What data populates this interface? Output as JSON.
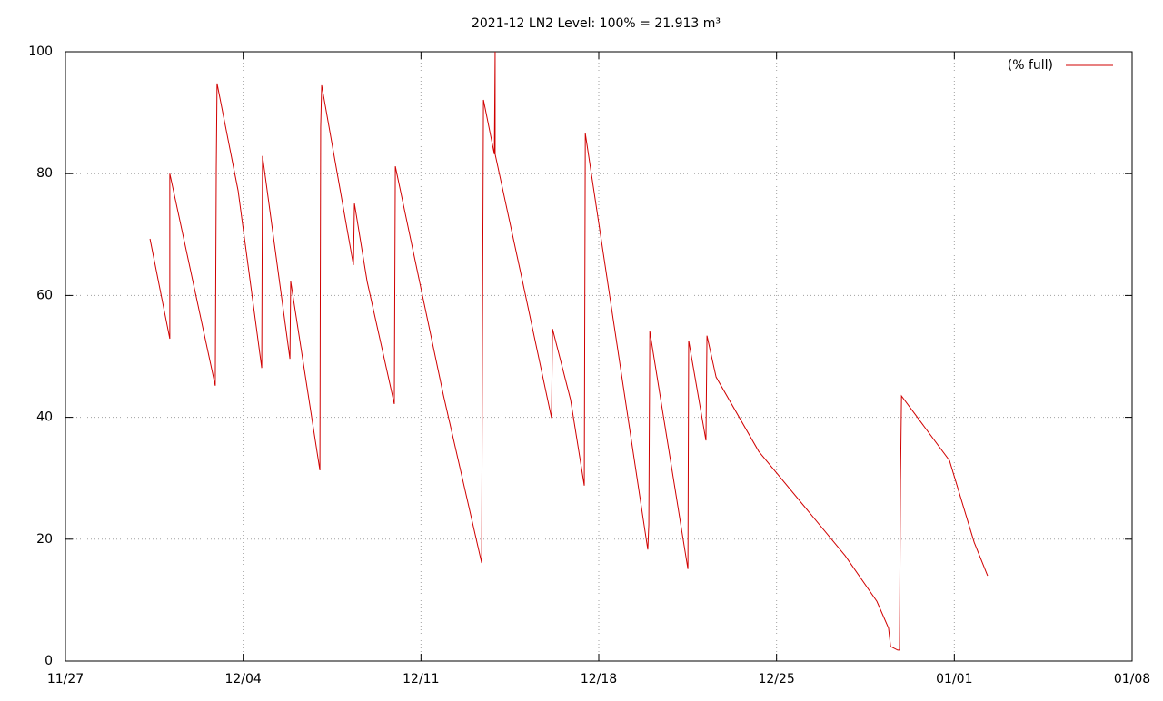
{
  "chart_data": {
    "type": "line",
    "title": "2021-12 LN2 Level: 100% = 21.913 m³",
    "x": [
      3.33,
      4.11,
      4.11,
      5.9,
      5.94,
      5.97,
      6.8,
      7.73,
      7.76,
      8.84,
      8.87,
      10.02,
      10.05,
      10.09,
      11.34,
      11.38,
      11.88,
      12.95,
      12.99,
      14.88,
      16.39,
      16.42,
      16.46,
      16.89,
      16.92,
      16.92,
      18.0,
      19.14,
      19.18,
      19.89,
      20.43,
      20.47,
      22.93,
      22.97,
      23.01,
      24.51,
      24.54,
      25.22,
      25.26,
      25.62,
      27.3,
      30.7,
      31.95,
      32.41,
      32.49,
      32.77,
      32.84,
      32.88,
      32.92,
      34.81,
      35.78,
      36.31
    ],
    "series": [
      {
        "name": "(% full)",
        "color": "#d00000",
        "values": [
          69.3,
          52.9,
          80.0,
          45.2,
          81.0,
          94.8,
          77.2,
          48.1,
          82.9,
          49.6,
          62.3,
          31.3,
          87.6,
          94.5,
          65.0,
          75.1,
          62.3,
          42.2,
          81.2,
          43.7,
          16.1,
          51.9,
          92.1,
          83.2,
          100,
          83.2,
          62.3,
          39.9,
          54.5,
          42.9,
          28.8,
          86.6,
          18.3,
          22.4,
          54.1,
          15.1,
          52.6,
          36.2,
          53.4,
          46.6,
          34.4,
          17.3,
          9.8,
          5.4,
          2.4,
          1.8,
          1.8,
          29.5,
          43.5,
          32.9,
          19.5,
          14.0
        ]
      }
    ],
    "xlim": [
      0,
      42
    ],
    "xticks": [
      {
        "value": 0,
        "label": "11/27"
      },
      {
        "value": 7,
        "label": "12/04"
      },
      {
        "value": 14,
        "label": "12/11"
      },
      {
        "value": 21,
        "label": "12/18"
      },
      {
        "value": 28,
        "label": "12/25"
      },
      {
        "value": 35,
        "label": "01/01"
      },
      {
        "value": 42,
        "label": "01/08"
      }
    ],
    "ylim": [
      0,
      100
    ],
    "yticks": [
      0,
      20,
      40,
      60,
      80,
      100
    ],
    "grid": true,
    "legend": "top-right"
  }
}
